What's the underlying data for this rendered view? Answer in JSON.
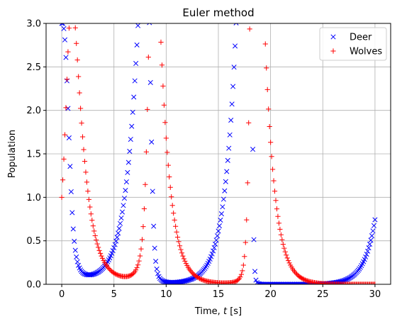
{
  "chart_data": {
    "type": "scatter",
    "title": "Euler method",
    "xlabel_prefix": "Time, ",
    "xlabel_var": "t",
    "xlabel_suffix": " [s]",
    "ylabel": "Population",
    "xlim": [
      -1.5,
      31.5
    ],
    "ylim": [
      0,
      3
    ],
    "xticks": [
      0,
      5,
      10,
      15,
      20,
      25,
      30
    ],
    "yticks": [
      0.0,
      0.5,
      1.0,
      1.5,
      2.0,
      2.5,
      3.0
    ],
    "ytick_labels": [
      "0.0",
      "0.5",
      "1.0",
      "1.5",
      "2.0",
      "2.5",
      "3.0"
    ],
    "grid": true,
    "legend_position": "top-right",
    "t_range": [
      0,
      30
    ],
    "dt": 0.1,
    "series": [
      {
        "name": "Deer",
        "marker": "x",
        "color": "#0000ff",
        "initial": 3.0
      },
      {
        "name": "Wolves",
        "marker": "+",
        "color": "#ff0000",
        "initial": 1.0
      }
    ],
    "model": {
      "a": 1.0,
      "b": 1.0,
      "c": 1.0,
      "d": 1.0
    }
  }
}
